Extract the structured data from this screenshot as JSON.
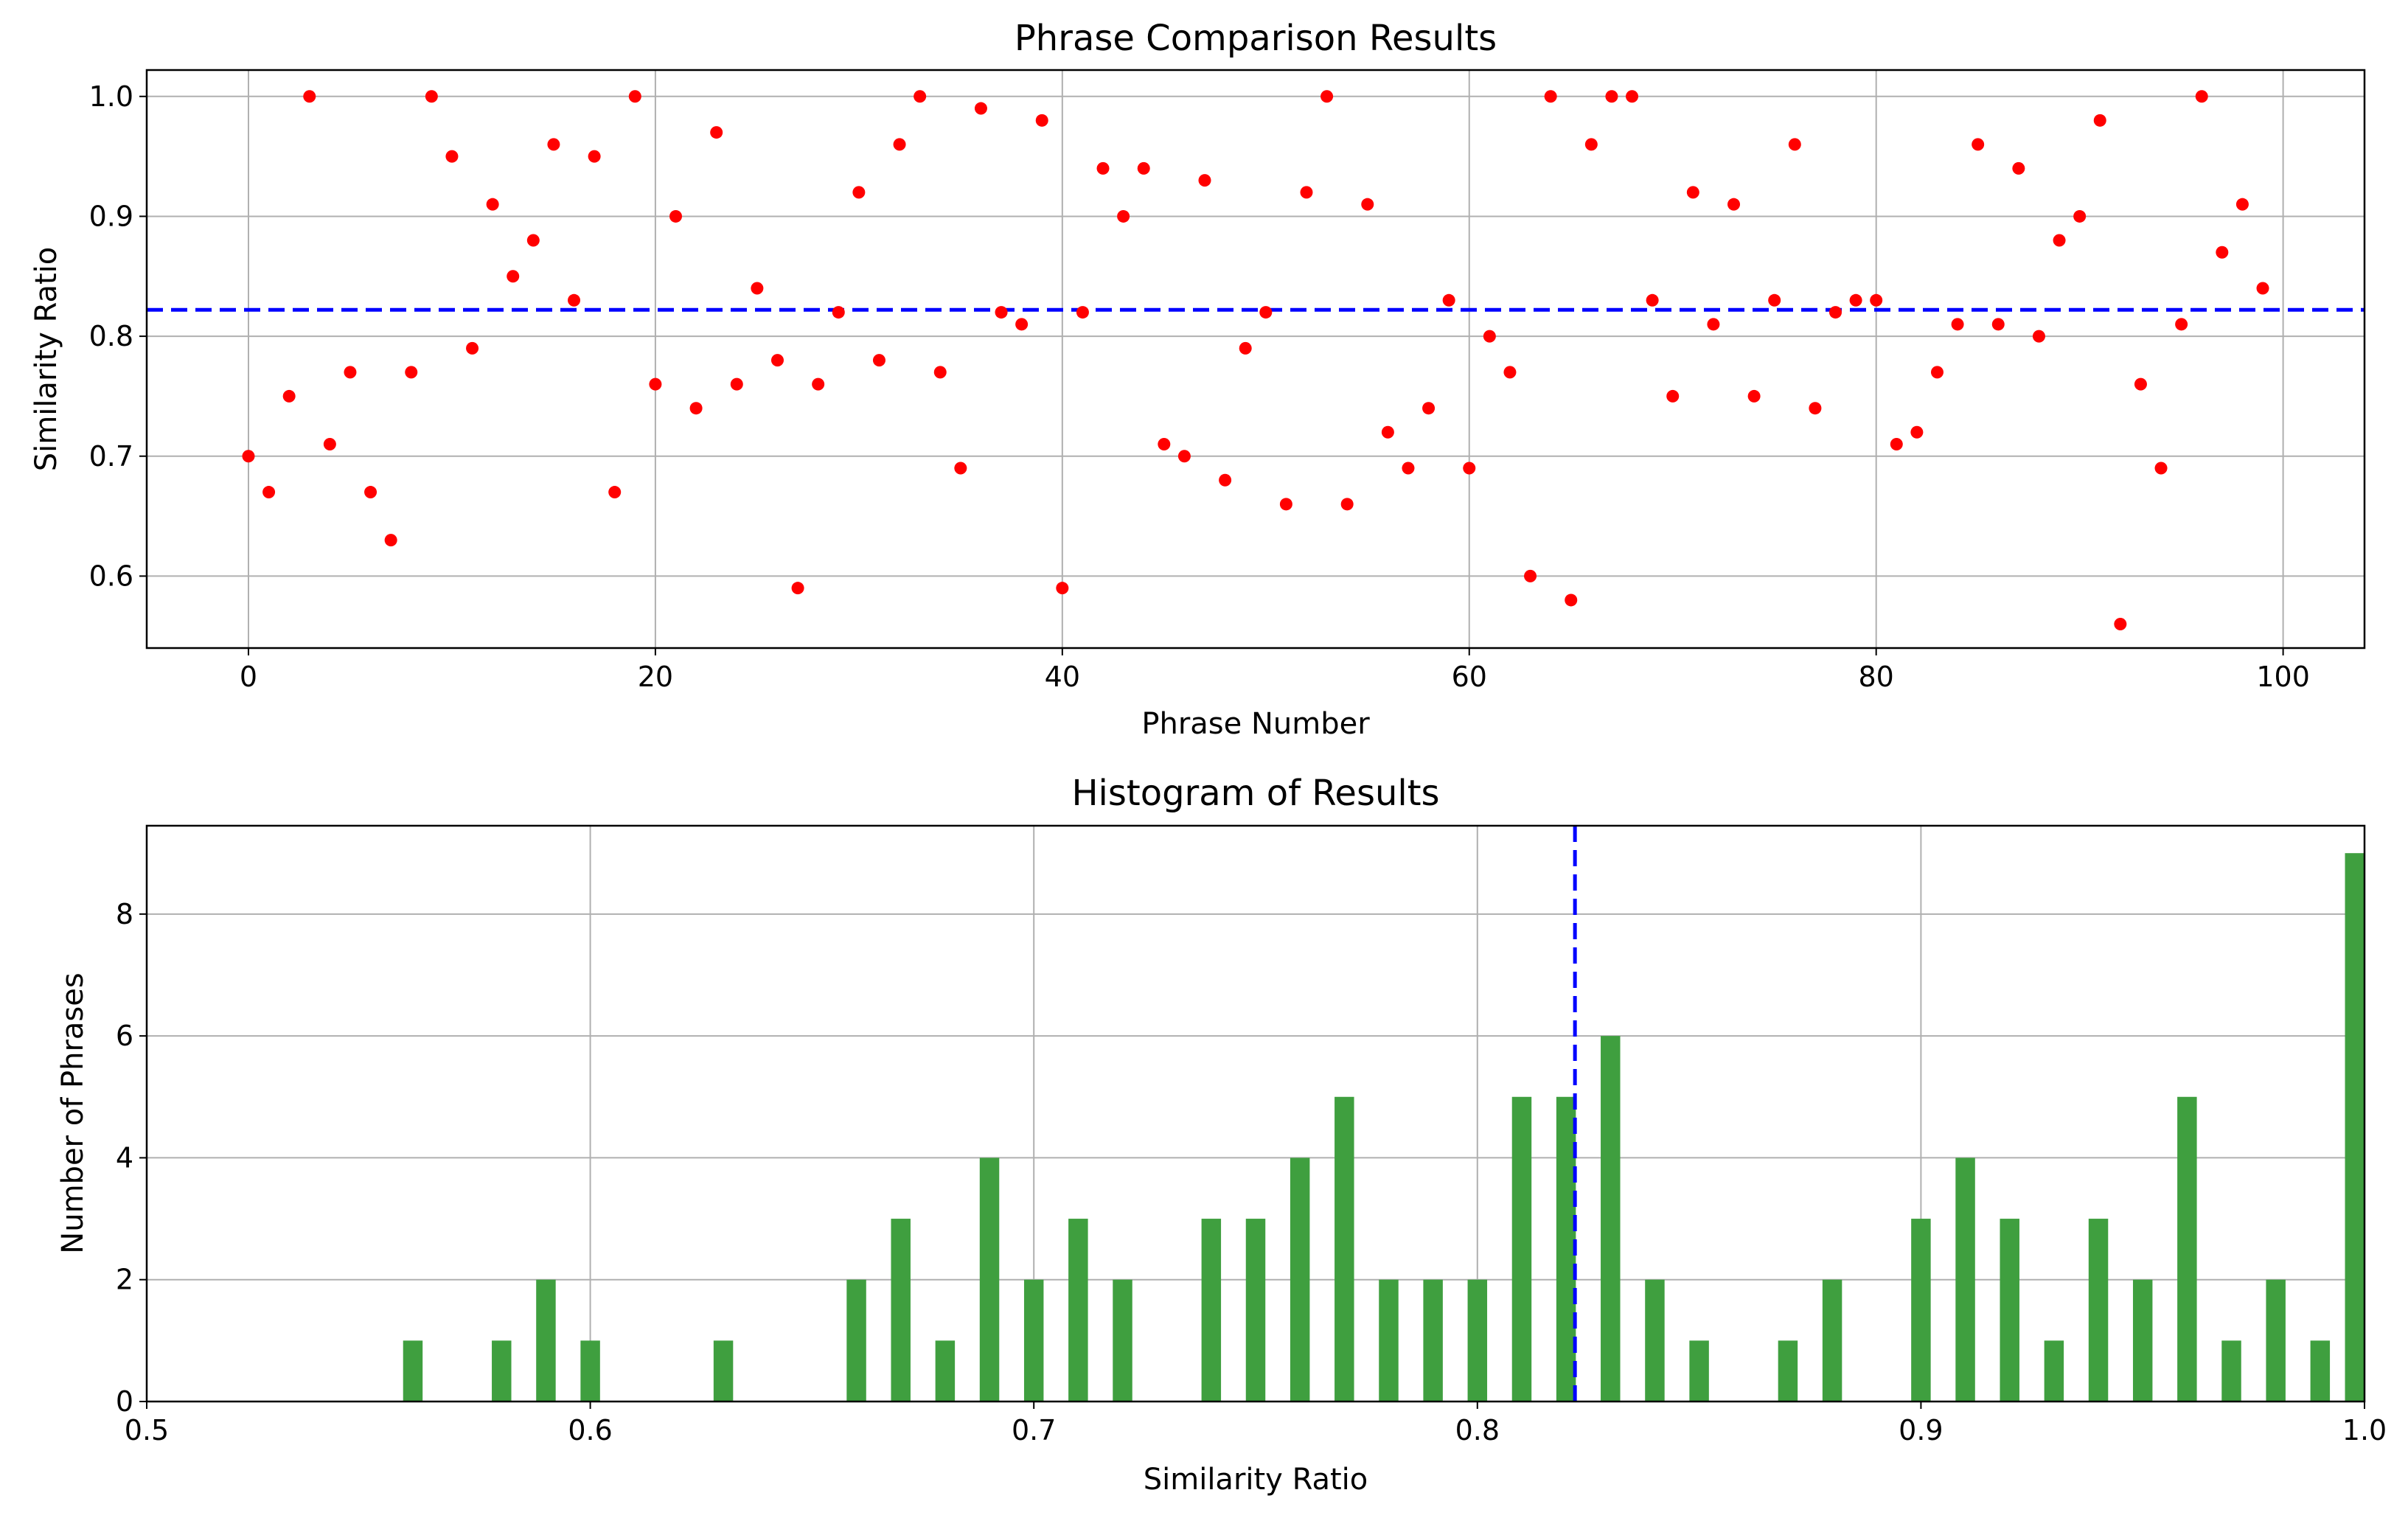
{
  "colors": {
    "point": "#ff0000",
    "bar": "#3f9f3f",
    "mean_line": "#0000ff",
    "grid": "#b0b0b0",
    "axes": "#000000",
    "background": "#ffffff"
  },
  "chart_data": [
    {
      "type": "scatter",
      "title": "Phrase Comparison Results",
      "xlabel": "Phrase Number",
      "ylabel": "Similarity Ratio",
      "xlim": [
        -5,
        104
      ],
      "ylim": [
        0.54,
        1.022
      ],
      "xticks": [
        0,
        20,
        40,
        60,
        80,
        100
      ],
      "yticks": [
        0.6,
        0.7,
        0.8,
        0.9,
        1.0
      ],
      "xtick_labels": [
        "0",
        "20",
        "40",
        "60",
        "80",
        "100"
      ],
      "ytick_labels": [
        "0.6",
        "0.7",
        "0.8",
        "0.9",
        "1.0"
      ],
      "grid": true,
      "mean_line": 0.822,
      "x": [
        0,
        1,
        2,
        3,
        4,
        5,
        6,
        7,
        8,
        9,
        10,
        11,
        12,
        13,
        14,
        15,
        16,
        17,
        18,
        19,
        20,
        21,
        22,
        23,
        24,
        25,
        26,
        27,
        28,
        29,
        30,
        31,
        32,
        33,
        34,
        35,
        36,
        37,
        38,
        39,
        40,
        41,
        42,
        43,
        44,
        45,
        46,
        47,
        48,
        49,
        50,
        51,
        52,
        53,
        54,
        55,
        56,
        57,
        58,
        59,
        60,
        61,
        62,
        63,
        64,
        65,
        66,
        67,
        68,
        69,
        70,
        71,
        72,
        73,
        74,
        75,
        76,
        77,
        78,
        79,
        80,
        81,
        82,
        83,
        84,
        85,
        86,
        87,
        88,
        89,
        90,
        91,
        92,
        93,
        94,
        95,
        96,
        97,
        98,
        99
      ],
      "y": [
        0.7,
        0.67,
        0.75,
        1.0,
        0.71,
        0.77,
        0.67,
        0.63,
        0.77,
        1.0,
        0.95,
        0.79,
        0.91,
        0.85,
        0.88,
        0.96,
        0.83,
        0.95,
        0.67,
        1.0,
        0.76,
        0.9,
        0.74,
        0.97,
        0.76,
        0.84,
        0.78,
        0.59,
        0.76,
        0.82,
        0.92,
        0.78,
        0.96,
        1.0,
        0.77,
        0.69,
        0.99,
        0.82,
        0.81,
        0.98,
        0.59,
        0.82,
        0.94,
        0.9,
        0.94,
        0.71,
        0.7,
        0.93,
        0.68,
        0.79,
        0.82,
        0.66,
        0.92,
        1.0,
        0.66,
        0.91,
        0.72,
        0.69,
        0.74,
        0.83,
        0.69,
        0.8,
        0.77,
        0.6,
        1.0,
        0.58,
        0.96,
        1.0,
        1.0,
        0.83,
        0.75,
        0.92,
        0.81,
        0.91,
        0.75,
        0.83,
        0.96,
        0.74,
        0.82,
        0.83,
        0.83,
        0.71,
        0.72,
        0.77,
        0.81,
        0.96,
        0.81,
        0.94,
        0.8,
        0.88,
        0.9,
        0.98,
        0.56,
        0.76,
        0.69,
        0.81,
        1.0,
        0.87,
        0.91,
        0.84
      ]
    },
    {
      "type": "bar",
      "title": "Histogram of Results",
      "xlabel": "Similarity Ratio",
      "ylabel": "Number of Phrases",
      "xlim": [
        0.5,
        1.0
      ],
      "ylim": [
        0,
        9.45
      ],
      "xticks": [
        0.5,
        0.6,
        0.7,
        0.8,
        0.9,
        1.0
      ],
      "yticks": [
        0,
        2,
        4,
        6,
        8
      ],
      "xtick_labels": [
        "0.5",
        "0.6",
        "0.7",
        "0.8",
        "0.9",
        "1.0"
      ],
      "ytick_labels": [
        "0",
        "2",
        "4",
        "6",
        "8"
      ],
      "grid": true,
      "mean_line": 0.822,
      "bin_range": [
        0.56,
        1.0
      ],
      "bin_count": 100,
      "bins": [
        {
          "x": 0.56,
          "count": 1
        },
        {
          "x": 0.58,
          "count": 1
        },
        {
          "x": 0.59,
          "count": 2
        },
        {
          "x": 0.6,
          "count": 1
        },
        {
          "x": 0.63,
          "count": 1
        },
        {
          "x": 0.66,
          "count": 2
        },
        {
          "x": 0.67,
          "count": 3
        },
        {
          "x": 0.68,
          "count": 1
        },
        {
          "x": 0.69,
          "count": 4
        },
        {
          "x": 0.7,
          "count": 2
        },
        {
          "x": 0.71,
          "count": 3
        },
        {
          "x": 0.72,
          "count": 2
        },
        {
          "x": 0.74,
          "count": 3
        },
        {
          "x": 0.75,
          "count": 3
        },
        {
          "x": 0.76,
          "count": 4
        },
        {
          "x": 0.77,
          "count": 5
        },
        {
          "x": 0.78,
          "count": 2
        },
        {
          "x": 0.79,
          "count": 2
        },
        {
          "x": 0.8,
          "count": 2
        },
        {
          "x": 0.81,
          "count": 5
        },
        {
          "x": 0.82,
          "count": 5
        },
        {
          "x": 0.83,
          "count": 6
        },
        {
          "x": 0.84,
          "count": 2
        },
        {
          "x": 0.85,
          "count": 1
        },
        {
          "x": 0.87,
          "count": 1
        },
        {
          "x": 0.88,
          "count": 2
        },
        {
          "x": 0.9,
          "count": 3
        },
        {
          "x": 0.91,
          "count": 4
        },
        {
          "x": 0.92,
          "count": 3
        },
        {
          "x": 0.93,
          "count": 1
        },
        {
          "x": 0.94,
          "count": 3
        },
        {
          "x": 0.95,
          "count": 2
        },
        {
          "x": 0.96,
          "count": 5
        },
        {
          "x": 0.97,
          "count": 1
        },
        {
          "x": 0.98,
          "count": 2
        },
        {
          "x": 0.99,
          "count": 1
        },
        {
          "x": 1.0,
          "count": 9
        }
      ]
    }
  ]
}
